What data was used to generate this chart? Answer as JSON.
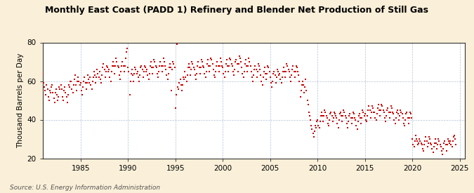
{
  "title": "Monthly East Coast (PADD 1) Refinery and Blender Net Production of Still Gas",
  "ylabel": "Thousand Barrels per Day",
  "source": "Source: U.S. Energy Information Administration",
  "background_color": "#faefd8",
  "plot_bg_color": "#ffffff",
  "marker_color": "#cc0000",
  "marker_size": 4,
  "xlim": [
    1981.0,
    2025.5
  ],
  "ylim": [
    20,
    80
  ],
  "yticks": [
    20,
    40,
    60,
    80
  ],
  "xticks": [
    1985,
    1990,
    1995,
    2000,
    2005,
    2010,
    2015,
    2020,
    2025
  ],
  "dates": [
    1981.0,
    1981.08,
    1981.17,
    1981.25,
    1981.33,
    1981.42,
    1981.5,
    1981.58,
    1981.67,
    1981.75,
    1981.83,
    1981.92,
    1982.0,
    1982.08,
    1982.17,
    1982.25,
    1982.33,
    1982.42,
    1982.5,
    1982.58,
    1982.67,
    1982.75,
    1982.83,
    1982.92,
    1983.0,
    1983.08,
    1983.17,
    1983.25,
    1983.33,
    1983.42,
    1983.5,
    1983.58,
    1983.67,
    1983.75,
    1983.83,
    1983.92,
    1984.0,
    1984.08,
    1984.17,
    1984.25,
    1984.33,
    1984.42,
    1984.5,
    1984.58,
    1984.67,
    1984.75,
    1984.83,
    1984.92,
    1985.0,
    1985.08,
    1985.17,
    1985.25,
    1985.33,
    1985.42,
    1985.5,
    1985.58,
    1985.67,
    1985.75,
    1985.83,
    1985.92,
    1986.0,
    1986.08,
    1986.17,
    1986.25,
    1986.33,
    1986.42,
    1986.5,
    1986.58,
    1986.67,
    1986.75,
    1986.83,
    1986.92,
    1987.0,
    1987.08,
    1987.17,
    1987.25,
    1987.33,
    1987.42,
    1987.5,
    1987.58,
    1987.67,
    1987.75,
    1987.83,
    1987.92,
    1988.0,
    1988.08,
    1988.17,
    1988.25,
    1988.33,
    1988.42,
    1988.5,
    1988.58,
    1988.67,
    1988.75,
    1988.83,
    1988.92,
    1989.0,
    1989.08,
    1989.17,
    1989.25,
    1989.33,
    1989.42,
    1989.5,
    1989.58,
    1989.67,
    1989.75,
    1989.83,
    1989.92,
    1990.0,
    1990.08,
    1990.17,
    1990.25,
    1990.33,
    1990.42,
    1990.5,
    1990.58,
    1990.67,
    1990.75,
    1990.83,
    1990.92,
    1991.0,
    1991.08,
    1991.17,
    1991.25,
    1991.33,
    1991.42,
    1991.5,
    1991.58,
    1991.67,
    1991.75,
    1991.83,
    1991.92,
    1992.0,
    1992.08,
    1992.17,
    1992.25,
    1992.33,
    1992.42,
    1992.5,
    1992.58,
    1992.67,
    1992.75,
    1992.83,
    1992.92,
    1993.0,
    1993.08,
    1993.17,
    1993.25,
    1993.33,
    1993.42,
    1993.5,
    1993.58,
    1993.67,
    1993.75,
    1993.83,
    1993.92,
    1994.0,
    1994.08,
    1994.17,
    1994.25,
    1994.33,
    1994.42,
    1994.5,
    1994.58,
    1994.67,
    1994.75,
    1994.83,
    1994.92,
    1995.0,
    1995.08,
    1995.17,
    1995.25,
    1995.33,
    1995.42,
    1995.5,
    1995.58,
    1995.67,
    1995.75,
    1995.83,
    1995.92,
    1996.0,
    1996.08,
    1996.17,
    1996.25,
    1996.33,
    1996.42,
    1996.5,
    1996.58,
    1996.67,
    1996.75,
    1996.83,
    1996.92,
    1997.0,
    1997.08,
    1997.17,
    1997.25,
    1997.33,
    1997.42,
    1997.5,
    1997.58,
    1997.67,
    1997.75,
    1997.83,
    1997.92,
    1998.0,
    1998.08,
    1998.17,
    1998.25,
    1998.33,
    1998.42,
    1998.5,
    1998.58,
    1998.67,
    1998.75,
    1998.83,
    1998.92,
    1999.0,
    1999.08,
    1999.17,
    1999.25,
    1999.33,
    1999.42,
    1999.5,
    1999.58,
    1999.67,
    1999.75,
    1999.83,
    1999.92,
    2000.0,
    2000.08,
    2000.17,
    2000.25,
    2000.33,
    2000.42,
    2000.5,
    2000.58,
    2000.67,
    2000.75,
    2000.83,
    2000.92,
    2001.0,
    2001.08,
    2001.17,
    2001.25,
    2001.33,
    2001.42,
    2001.5,
    2001.58,
    2001.67,
    2001.75,
    2001.83,
    2001.92,
    2002.0,
    2002.08,
    2002.17,
    2002.25,
    2002.33,
    2002.42,
    2002.5,
    2002.58,
    2002.67,
    2002.75,
    2002.83,
    2002.92,
    2003.0,
    2003.08,
    2003.17,
    2003.25,
    2003.33,
    2003.42,
    2003.5,
    2003.58,
    2003.67,
    2003.75,
    2003.83,
    2003.92,
    2004.0,
    2004.08,
    2004.17,
    2004.25,
    2004.33,
    2004.42,
    2004.5,
    2004.58,
    2004.67,
    2004.75,
    2004.83,
    2004.92,
    2005.0,
    2005.08,
    2005.17,
    2005.25,
    2005.33,
    2005.42,
    2005.5,
    2005.58,
    2005.67,
    2005.75,
    2005.83,
    2005.92,
    2006.0,
    2006.08,
    2006.17,
    2006.25,
    2006.33,
    2006.42,
    2006.5,
    2006.58,
    2006.67,
    2006.75,
    2006.83,
    2006.92,
    2007.0,
    2007.08,
    2007.17,
    2007.25,
    2007.33,
    2007.42,
    2007.5,
    2007.58,
    2007.67,
    2007.75,
    2007.83,
    2007.92,
    2008.0,
    2008.08,
    2008.17,
    2008.25,
    2008.33,
    2008.42,
    2008.5,
    2008.58,
    2008.67,
    2008.75,
    2008.83,
    2008.92,
    2009.0,
    2009.08,
    2009.17,
    2009.25,
    2009.33,
    2009.42,
    2009.5,
    2009.58,
    2009.67,
    2009.75,
    2009.83,
    2009.92,
    2010.0,
    2010.08,
    2010.17,
    2010.25,
    2010.33,
    2010.42,
    2010.5,
    2010.58,
    2010.67,
    2010.75,
    2010.83,
    2010.92,
    2011.0,
    2011.08,
    2011.17,
    2011.25,
    2011.33,
    2011.42,
    2011.5,
    2011.58,
    2011.67,
    2011.75,
    2011.83,
    2011.92,
    2012.0,
    2012.08,
    2012.17,
    2012.25,
    2012.33,
    2012.42,
    2012.5,
    2012.58,
    2012.67,
    2012.75,
    2012.83,
    2012.92,
    2013.0,
    2013.08,
    2013.17,
    2013.25,
    2013.33,
    2013.42,
    2013.5,
    2013.58,
    2013.67,
    2013.75,
    2013.83,
    2013.92,
    2014.0,
    2014.08,
    2014.17,
    2014.25,
    2014.33,
    2014.42,
    2014.5,
    2014.58,
    2014.67,
    2014.75,
    2014.83,
    2014.92,
    2015.0,
    2015.08,
    2015.17,
    2015.25,
    2015.33,
    2015.42,
    2015.5,
    2015.58,
    2015.67,
    2015.75,
    2015.83,
    2015.92,
    2016.0,
    2016.08,
    2016.17,
    2016.25,
    2016.33,
    2016.42,
    2016.5,
    2016.58,
    2016.67,
    2016.75,
    2016.83,
    2016.92,
    2017.0,
    2017.08,
    2017.17,
    2017.25,
    2017.33,
    2017.42,
    2017.5,
    2017.58,
    2017.67,
    2017.75,
    2017.83,
    2017.92,
    2018.0,
    2018.08,
    2018.17,
    2018.25,
    2018.33,
    2018.42,
    2018.5,
    2018.58,
    2018.67,
    2018.75,
    2018.83,
    2018.92,
    2019.0,
    2019.08,
    2019.17,
    2019.25,
    2019.33,
    2019.42,
    2019.5,
    2019.58,
    2019.67,
    2019.75,
    2019.83,
    2019.92,
    2020.0,
    2020.08,
    2020.17,
    2020.25,
    2020.33,
    2020.42,
    2020.5,
    2020.58,
    2020.67,
    2020.75,
    2020.83,
    2020.92,
    2021.0,
    2021.08,
    2021.17,
    2021.25,
    2021.33,
    2021.42,
    2021.5,
    2021.58,
    2021.67,
    2021.75,
    2021.83,
    2021.92,
    2022.0,
    2022.08,
    2022.17,
    2022.25,
    2022.33,
    2022.42,
    2022.5,
    2022.58,
    2022.67,
    2022.75,
    2022.83,
    2022.92,
    2023.0,
    2023.08,
    2023.17,
    2023.25,
    2023.33,
    2023.42,
    2023.5,
    2023.58,
    2023.67,
    2023.75,
    2023.83,
    2023.92,
    2024.0,
    2024.08,
    2024.17,
    2024.25,
    2024.33,
    2024.42,
    2024.5,
    2024.58
  ],
  "values": [
    64,
    59,
    57,
    55,
    53,
    58,
    56,
    52,
    50,
    55,
    54,
    57,
    58,
    54,
    51,
    49,
    54,
    56,
    53,
    50,
    52,
    57,
    56,
    58,
    56,
    52,
    50,
    55,
    57,
    54,
    52,
    49,
    53,
    58,
    57,
    60,
    60,
    56,
    54,
    58,
    61,
    63,
    58,
    55,
    60,
    62,
    60,
    58,
    59,
    55,
    53,
    57,
    60,
    62,
    59,
    56,
    59,
    63,
    61,
    59,
    62,
    58,
    56,
    60,
    62,
    65,
    63,
    59,
    62,
    66,
    64,
    62,
    65,
    61,
    59,
    63,
    67,
    69,
    66,
    62,
    65,
    68,
    67,
    65,
    66,
    62,
    60,
    65,
    68,
    70,
    68,
    64,
    68,
    72,
    70,
    68,
    67,
    63,
    61,
    65,
    68,
    70,
    68,
    65,
    68,
    72,
    75,
    77,
    67,
    65,
    53,
    60,
    64,
    66,
    63,
    60,
    64,
    67,
    66,
    64,
    65,
    62,
    60,
    63,
    67,
    68,
    66,
    62,
    65,
    68,
    67,
    65,
    66,
    63,
    61,
    64,
    68,
    70,
    67,
    64,
    67,
    71,
    70,
    68,
    67,
    64,
    62,
    65,
    68,
    70,
    68,
    65,
    68,
    72,
    70,
    68,
    66,
    63,
    61,
    64,
    67,
    69,
    67,
    55,
    66,
    70,
    69,
    67,
    46,
    53,
    79,
    57,
    56,
    59,
    61,
    58,
    55,
    58,
    62,
    61,
    65,
    62,
    60,
    63,
    67,
    69,
    67,
    63,
    66,
    70,
    69,
    67,
    66,
    63,
    61,
    64,
    68,
    70,
    67,
    64,
    67,
    71,
    70,
    68,
    67,
    64,
    62,
    65,
    69,
    71,
    68,
    65,
    68,
    72,
    71,
    69,
    66,
    63,
    62,
    65,
    68,
    70,
    68,
    65,
    68,
    72,
    70,
    68,
    67,
    64,
    62,
    65,
    69,
    71,
    68,
    65,
    68,
    72,
    71,
    69,
    68,
    65,
    63,
    66,
    70,
    71,
    69,
    65,
    69,
    73,
    72,
    70,
    67,
    64,
    62,
    65,
    69,
    71,
    68,
    65,
    68,
    72,
    70,
    68,
    65,
    62,
    60,
    63,
    66,
    68,
    66,
    62,
    65,
    69,
    68,
    66,
    63,
    60,
    58,
    62,
    65,
    67,
    64,
    61,
    64,
    68,
    67,
    65,
    62,
    59,
    57,
    60,
    64,
    65,
    63,
    59,
    62,
    66,
    65,
    63,
    64,
    61,
    59,
    62,
    65,
    67,
    65,
    62,
    65,
    69,
    68,
    66,
    65,
    62,
    60,
    63,
    66,
    68,
    65,
    62,
    65,
    68,
    67,
    65,
    63,
    60,
    52,
    55,
    58,
    60,
    58,
    54,
    57,
    61,
    55,
    50,
    48,
    44,
    42,
    40,
    37,
    35,
    33,
    31,
    34,
    37,
    36,
    39,
    40,
    37,
    36,
    39,
    42,
    44,
    42,
    39,
    42,
    45,
    44,
    42,
    41,
    38,
    37,
    40,
    43,
    44,
    42,
    39,
    41,
    44,
    43,
    42,
    41,
    38,
    36,
    40,
    43,
    44,
    42,
    39,
    42,
    45,
    44,
    42,
    41,
    38,
    36,
    39,
    42,
    43,
    41,
    38,
    41,
    44,
    43,
    41,
    40,
    37,
    35,
    39,
    42,
    43,
    41,
    38,
    41,
    45,
    44,
    42,
    43,
    40,
    39,
    42,
    45,
    47,
    45,
    41,
    44,
    47,
    46,
    44,
    44,
    41,
    40,
    43,
    46,
    48,
    45,
    42,
    45,
    48,
    47,
    45,
    44,
    41,
    39,
    42,
    45,
    46,
    44,
    41,
    44,
    47,
    46,
    44,
    43,
    40,
    38,
    41,
    44,
    45,
    43,
    40,
    42,
    45,
    44,
    43,
    41,
    38,
    37,
    40,
    43,
    44,
    41,
    38,
    41,
    44,
    43,
    41,
    30,
    27,
    26,
    29,
    32,
    30,
    29,
    27,
    28,
    30,
    29,
    28,
    27,
    25,
    24,
    27,
    29,
    31,
    29,
    26,
    28,
    31,
    30,
    28,
    27,
    25,
    23,
    26,
    28,
    30,
    28,
    25,
    27,
    30,
    29,
    27,
    26,
    24,
    22,
    25,
    28,
    29,
    27,
    24,
    27,
    30,
    29,
    28,
    29,
    27,
    26,
    29,
    31,
    32,
    30,
    27
  ]
}
